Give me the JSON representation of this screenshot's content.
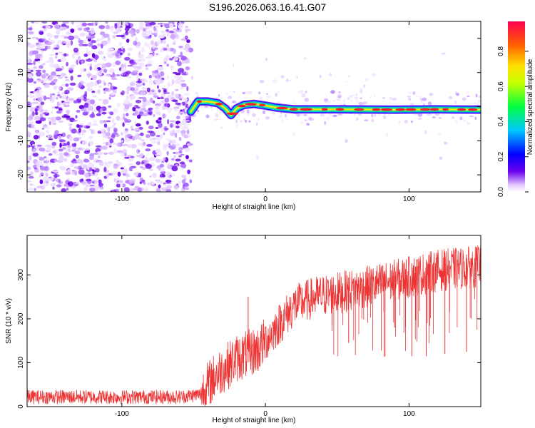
{
  "title": "S196.2026.063.16.41.G07",
  "chart_data": [
    {
      "type": "heatmap",
      "name": "spectrogram",
      "xlabel": "Height of straight line (km)",
      "ylabel": "Frequency (Hz)",
      "xlim": [
        -166,
        150
      ],
      "ylim": [
        -25,
        25
      ],
      "xticks": [
        -100,
        0,
        100
      ],
      "yticks": [
        -20,
        -10,
        0,
        10,
        20
      ],
      "noise_region_x": [
        -166,
        -52
      ],
      "ridge": [
        {
          "x": -52,
          "y": -1.5
        },
        {
          "x": -47,
          "y": 1.5
        },
        {
          "x": -40,
          "y": 1.5
        },
        {
          "x": -33,
          "y": 1.0
        },
        {
          "x": -28,
          "y": -0.5
        },
        {
          "x": -24,
          "y": -2.5
        },
        {
          "x": -20,
          "y": -0.5
        },
        {
          "x": -15,
          "y": 0.5
        },
        {
          "x": -8,
          "y": 0.8
        },
        {
          "x": 0,
          "y": 0.3
        },
        {
          "x": 8,
          "y": -0.3
        },
        {
          "x": 20,
          "y": -0.8
        },
        {
          "x": 50,
          "y": -0.8
        },
        {
          "x": 90,
          "y": -0.9
        },
        {
          "x": 120,
          "y": -0.8
        },
        {
          "x": 150,
          "y": -0.9
        }
      ],
      "colorbar": {
        "label": "Normalized spectral amplitude",
        "range": [
          0,
          0.97
        ],
        "ticks": [
          "0.0",
          "0.2",
          "0.4",
          "0.6",
          "0.8"
        ]
      }
    },
    {
      "type": "line",
      "name": "snr",
      "xlabel": "Height of straight line (km)",
      "ylabel": "SNR (10 * v/v)",
      "xlim": [
        -166,
        150
      ],
      "ylim": [
        0,
        390
      ],
      "xticks": [
        -100,
        0,
        100
      ],
      "yticks": [
        0,
        100,
        200,
        300
      ],
      "color": "#ee3333",
      "trend": [
        {
          "x": -166,
          "y": 22
        },
        {
          "x": -60,
          "y": 22
        },
        {
          "x": -45,
          "y": 28
        },
        {
          "x": -35,
          "y": 70
        },
        {
          "x": -20,
          "y": 110
        },
        {
          "x": -5,
          "y": 130
        },
        {
          "x": 10,
          "y": 190
        },
        {
          "x": 20,
          "y": 230
        },
        {
          "x": 35,
          "y": 250
        },
        {
          "x": 60,
          "y": 265
        },
        {
          "x": 80,
          "y": 280
        },
        {
          "x": 100,
          "y": 295
        },
        {
          "x": 120,
          "y": 310
        },
        {
          "x": 150,
          "y": 320
        }
      ],
      "spikes": [
        {
          "x": -12,
          "y": 250
        },
        {
          "x": 58,
          "y": 145
        },
        {
          "x": 90,
          "y": 180
        },
        {
          "x": 102,
          "y": 115
        },
        {
          "x": 112,
          "y": 115
        },
        {
          "x": 125,
          "y": 120
        },
        {
          "x": 140,
          "y": 125
        }
      ]
    }
  ]
}
